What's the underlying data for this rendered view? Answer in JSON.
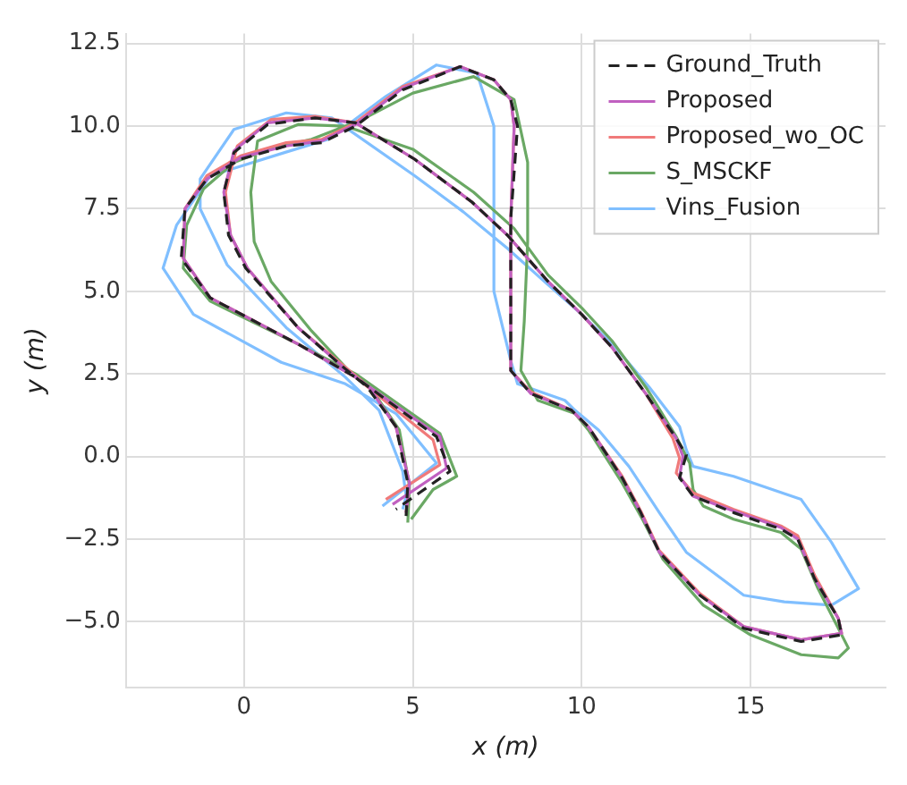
{
  "chart_data": {
    "type": "line",
    "xlabel": "x (m)",
    "ylabel": "y (m)",
    "xlim": [
      -3.5,
      19
    ],
    "ylim": [
      -7,
      12.8
    ],
    "xticks": [
      0,
      5,
      10,
      15
    ],
    "yticks": [
      {
        "value": -5,
        "label": "−5.0"
      },
      {
        "value": -2.5,
        "label": "−2.5"
      },
      {
        "value": 0,
        "label": "0.0"
      },
      {
        "value": 2.5,
        "label": "2.5"
      },
      {
        "value": 5,
        "label": "5.0"
      },
      {
        "value": 7.5,
        "label": "7.5"
      },
      {
        "value": 10,
        "label": "10.0"
      },
      {
        "value": 12.5,
        "label": "12.5"
      }
    ],
    "grid": true,
    "legend": "top right",
    "marker": "none",
    "series": [
      {
        "name": "Ground_Truth",
        "color": "#222222",
        "line_style": "dashed",
        "x": [
          4.8,
          4.85,
          4.5,
          3.65,
          3.0,
          1.6,
          0.05,
          -0.46,
          -0.6,
          -0.3,
          0.7,
          2.1,
          3.3,
          5.05,
          6.75,
          7.8,
          9.0,
          10.0,
          10.9,
          11.9,
          12.8,
          13.1,
          12.9,
          13.3,
          14.5,
          15.9,
          16.4,
          16.9,
          17.6,
          17.7,
          16.5,
          14.8,
          13.5,
          12.3,
          11.75,
          11.2,
          10.2,
          9.7,
          8.5,
          7.9,
          7.9,
          8.1,
          7.9,
          7.4,
          6.4,
          4.7,
          3.3,
          2.3,
          1.25,
          -0.1,
          -1.1,
          -1.75,
          -1.86,
          -1.0,
          1.6,
          3.3,
          5.7,
          6.1,
          4.5
        ],
        "values": [
          -1.8,
          -0.8,
          0.9,
          2.1,
          2.65,
          3.9,
          5.7,
          6.7,
          8.0,
          9.2,
          10.05,
          10.25,
          10.1,
          9.0,
          7.7,
          6.7,
          5.3,
          4.3,
          3.3,
          1.9,
          0.55,
          0.05,
          -0.65,
          -1.2,
          -1.7,
          -2.2,
          -2.5,
          -3.7,
          -4.9,
          -5.4,
          -5.6,
          -5.2,
          -4.2,
          -2.9,
          -1.7,
          -0.65,
          0.9,
          1.4,
          1.9,
          2.6,
          7.2,
          10.0,
          10.8,
          11.4,
          11.8,
          11.1,
          10.0,
          9.5,
          9.4,
          9.0,
          8.4,
          7.5,
          6.0,
          4.8,
          3.4,
          2.4,
          0.6,
          -0.45,
          -1.6
        ]
      },
      {
        "name": "Proposed",
        "color": "#c060c0",
        "line_style": "solid",
        "x": [
          4.8,
          4.9,
          4.5,
          3.7,
          3.0,
          1.6,
          0.1,
          -0.4,
          -0.6,
          -0.3,
          0.7,
          2.1,
          3.3,
          5.05,
          6.75,
          7.8,
          9.0,
          10.0,
          10.9,
          11.9,
          12.8,
          13.0,
          12.9,
          13.3,
          14.5,
          15.9,
          16.4,
          16.9,
          17.6,
          17.7,
          16.5,
          14.8,
          13.5,
          12.3,
          11.75,
          11.2,
          10.2,
          9.7,
          8.5,
          7.9,
          7.9,
          8.0,
          7.9,
          7.4,
          6.4,
          4.7,
          3.3,
          2.3,
          1.25,
          -0.1,
          -1.1,
          -1.75,
          -1.8,
          -1.0,
          1.6,
          3.3,
          5.8,
          6.0,
          4.4
        ],
        "values": [
          -1.7,
          -0.8,
          0.9,
          2.1,
          2.65,
          3.9,
          5.7,
          6.7,
          8.0,
          9.25,
          10.1,
          10.25,
          10.1,
          9.0,
          7.7,
          6.7,
          5.3,
          4.3,
          3.3,
          1.9,
          0.55,
          0.0,
          -0.6,
          -1.2,
          -1.65,
          -2.15,
          -2.5,
          -3.7,
          -4.9,
          -5.35,
          -5.55,
          -5.15,
          -4.2,
          -2.9,
          -1.7,
          -0.65,
          0.9,
          1.4,
          1.9,
          2.6,
          7.2,
          10.0,
          10.8,
          11.4,
          11.8,
          11.15,
          10.05,
          9.55,
          9.4,
          9.05,
          8.4,
          7.5,
          6.0,
          4.8,
          3.4,
          2.4,
          0.6,
          -0.35,
          -1.45
        ]
      },
      {
        "name": "Proposed_wo_OC",
        "color": "#f07a7a",
        "line_style": "solid",
        "x": [
          4.8,
          4.9,
          4.5,
          3.7,
          3.0,
          1.6,
          0.1,
          -0.4,
          -0.55,
          -0.2,
          0.8,
          2.1,
          3.3,
          5.05,
          6.75,
          7.8,
          9.0,
          10.0,
          10.9,
          11.9,
          12.7,
          12.9,
          12.8,
          13.3,
          14.5,
          15.9,
          16.4,
          16.9,
          17.6,
          17.7,
          16.5,
          14.8,
          13.5,
          12.3,
          11.75,
          11.2,
          10.2,
          9.7,
          8.5,
          7.9,
          7.9,
          8.0,
          7.9,
          7.4,
          6.4,
          4.7,
          3.3,
          2.3,
          1.25,
          -0.1,
          -1.1,
          -1.75,
          -1.8,
          -1.0,
          1.6,
          3.3,
          5.6,
          5.8,
          4.2
        ],
        "values": [
          -1.7,
          -0.8,
          0.9,
          2.1,
          2.7,
          3.9,
          5.7,
          6.7,
          8.0,
          9.4,
          10.2,
          10.3,
          10.1,
          9.0,
          7.7,
          6.7,
          5.3,
          4.3,
          3.3,
          1.9,
          0.55,
          -0.05,
          -0.5,
          -1.1,
          -1.6,
          -2.1,
          -2.4,
          -3.6,
          -4.9,
          -5.35,
          -5.55,
          -5.15,
          -4.15,
          -2.85,
          -1.65,
          -0.6,
          0.9,
          1.4,
          1.95,
          2.6,
          7.2,
          10.0,
          10.8,
          11.4,
          11.8,
          11.2,
          10.1,
          9.6,
          9.5,
          9.1,
          8.5,
          7.5,
          6.0,
          4.8,
          3.4,
          2.4,
          0.5,
          -0.25,
          -1.3
        ]
      },
      {
        "name": "S_MSCKF",
        "color": "#6aa864",
        "line_style": "solid",
        "x": [
          4.85,
          4.9,
          4.6,
          3.8,
          3.1,
          2.0,
          0.8,
          0.3,
          0.2,
          0.4,
          1.6,
          3.0,
          5.0,
          6.8,
          8.0,
          9.0,
          10.0,
          10.9,
          11.9,
          12.8,
          13.2,
          13.3,
          13.6,
          14.5,
          15.9,
          16.5,
          17.0,
          17.5,
          17.9,
          17.6,
          16.5,
          15.0,
          13.6,
          12.4,
          11.8,
          11.2,
          10.2,
          9.8,
          8.7,
          8.2,
          8.3,
          8.4,
          8.4,
          8.0,
          6.8,
          5.0,
          3.5,
          2.0,
          0.7,
          -0.3,
          -1.2,
          -1.7,
          -1.8,
          -1.0,
          1.6,
          3.3,
          5.8,
          6.3,
          5.6,
          4.95
        ],
        "values": [
          -2.0,
          -0.9,
          0.8,
          2.0,
          2.6,
          3.8,
          5.3,
          6.5,
          8.0,
          9.55,
          10.05,
          10.0,
          9.3,
          8.0,
          6.9,
          5.5,
          4.5,
          3.5,
          2.1,
          0.6,
          -0.2,
          -1.0,
          -1.5,
          -1.9,
          -2.3,
          -2.8,
          -4.0,
          -5.0,
          -5.8,
          -6.1,
          -6.0,
          -5.4,
          -4.5,
          -3.1,
          -1.9,
          -0.8,
          0.8,
          1.3,
          1.7,
          2.6,
          4.1,
          6.5,
          8.9,
          10.8,
          11.5,
          11.0,
          10.2,
          9.6,
          9.3,
          8.9,
          8.1,
          7.0,
          5.7,
          4.7,
          3.4,
          2.5,
          0.7,
          -0.6,
          -1.0,
          -1.9
        ]
      },
      {
        "name": "Vins_Fusion",
        "color": "#80bfff",
        "line_style": "solid",
        "x": [
          4.7,
          4.8,
          4.7,
          4.0,
          3.0,
          1.25,
          -0.5,
          -1.3,
          -1.3,
          -0.3,
          1.25,
          2.6,
          5.05,
          6.5,
          7.8,
          9.0,
          10.0,
          11.0,
          12.0,
          12.9,
          13.1,
          13.3,
          14.5,
          16.5,
          17.4,
          18.2,
          17.4,
          16.0,
          14.8,
          13.1,
          12.3,
          11.4,
          10.5,
          9.8,
          9.5,
          8.1,
          7.9,
          7.4,
          7.4,
          6.9,
          5.7,
          4.2,
          2.5,
          1.2,
          -1.0,
          -2.0,
          -2.4,
          -1.5,
          1.1,
          3.0,
          4.5,
          5.7,
          4.1
        ],
        "values": [
          -1.6,
          -1.2,
          -0.45,
          1.4,
          2.4,
          3.9,
          5.8,
          7.5,
          8.4,
          9.9,
          10.4,
          10.25,
          8.5,
          7.4,
          6.3,
          5.2,
          4.3,
          3.3,
          2.1,
          0.9,
          0.2,
          -0.3,
          -0.6,
          -1.3,
          -2.6,
          -4.0,
          -4.5,
          -4.4,
          -4.2,
          -2.9,
          -1.7,
          -0.3,
          0.8,
          1.4,
          1.7,
          2.2,
          2.9,
          5.0,
          10.0,
          11.6,
          11.85,
          10.9,
          9.6,
          9.2,
          8.5,
          7.0,
          5.7,
          4.3,
          2.85,
          2.2,
          1.3,
          -0.2,
          -1.5
        ]
      }
    ]
  }
}
